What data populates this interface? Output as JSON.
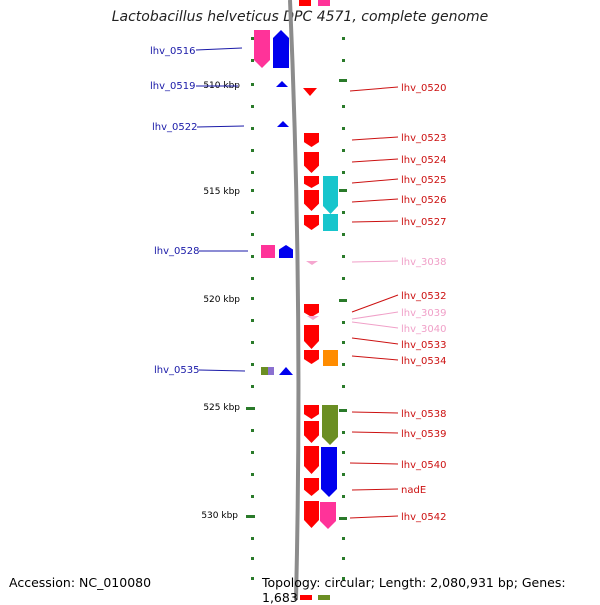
{
  "title": "Lactobacillus helveticus DPC 4571, complete genome",
  "footer": {
    "accession": "Accession: NC_010080",
    "topology": "Topology: circular; Length: 2,080,931 bp; Genes: 1,683"
  },
  "colors": {
    "backbone": "#8c8c8c",
    "tick": "#2a7a2a",
    "left_label": "#1a1aa8",
    "right_label": "#cc1111",
    "faded_label": "#f0a0c8",
    "red": "#ff0000",
    "magenta": "#ff3399",
    "blue": "#0000ee",
    "cyan": "#17c5cc",
    "olive": "#6b8e23",
    "orange": "#ff8c00",
    "violet": "#8a70d0",
    "pink_faint": "#f5a6cf"
  },
  "kbp_labels": [
    "510 kbp",
    "515 kbp",
    "520 kbp",
    "525 kbp",
    "530 kbp"
  ],
  "left_genes": [
    "lhv_0516",
    "lhv_0519",
    "lhv_0522",
    "lhv_0528",
    "lhv_0535"
  ],
  "right_genes": [
    "lhv_0520",
    "lhv_0523",
    "lhv_0524",
    "lhv_0525",
    "lhv_0526",
    "lhv_0527",
    "lhv_3038",
    "lhv_0532",
    "lhv_3039",
    "lhv_3040",
    "lhv_0533",
    "lhv_0534",
    "lhv_0538",
    "lhv_0539",
    "lhv_0540",
    "nadE",
    "lhv_0542"
  ]
}
